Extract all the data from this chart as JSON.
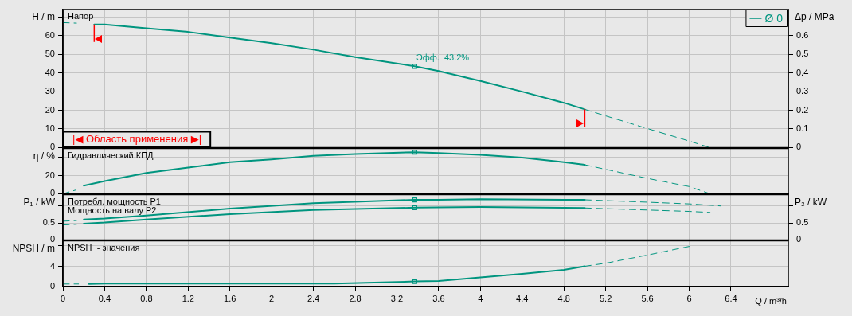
{
  "chart_data": [
    {
      "type": "line",
      "title": "Напор",
      "ylabel": "H / m",
      "y2label": "Δp / MPa",
      "xlim": [
        0,
        6.95
      ],
      "xticks": [
        0,
        0.4,
        0.8,
        1.2,
        1.6,
        2,
        2.4,
        2.8,
        3.2,
        3.6,
        4,
        4.4,
        4.8,
        5.2,
        5.6,
        6,
        6.4
      ],
      "ylim": [
        0,
        74
      ],
      "yticks": [
        0,
        10,
        20,
        30,
        40,
        50,
        60,
        {
          "value": 70,
          "label": null
        }
      ],
      "y2lim": [
        0,
        0.74
      ],
      "y2ticks": [
        0,
        0.1,
        0.2,
        0.3,
        0.4,
        0.5,
        0.6
      ],
      "grid": true,
      "legend": "top right",
      "tick_labels": "y",
      "annotations": [
        "|◀ Область применения ▶|",
        {
          "text": "Эфф.  43.2%",
          "x": 3.37,
          "y": 43.6
        }
      ],
      "ref_lines": [
        {
          "axis": "x",
          "value": 0.3,
          "color": "#ff0000"
        },
        {
          "axis": "x",
          "value": 5,
          "color": "#ff0000"
        }
      ],
      "series": [
        {
          "name": "Ø 0",
          "type": "line",
          "color": "#00957f",
          "line_style": "solid",
          "x": [
            0.3,
            0.4,
            0.8,
            1.2,
            1.6,
            2,
            2.4,
            2.8,
            3.37,
            3.6,
            4,
            4.4,
            4.8,
            5
          ],
          "values": [
            66,
            66,
            64,
            62,
            59,
            56,
            52.5,
            48.5,
            43.6,
            41,
            35.7,
            30,
            24,
            20.5
          ]
        },
        {
          "type": "line",
          "color": "#00957f",
          "line_style": "dashed",
          "x": [
            0,
            0.13
          ],
          "values": [
            67,
            66.7
          ]
        },
        {
          "type": "line",
          "color": "#00957f",
          "line_style": "dashed",
          "x": [
            5,
            5.2,
            5.6,
            6,
            6.2
          ],
          "values": [
            20.5,
            17,
            10.2,
            3.5,
            0
          ]
        },
        {
          "type": "scatter",
          "color": "#00957f",
          "marker": "square",
          "x": [
            3.37
          ],
          "values": [
            43.6
          ]
        }
      ]
    },
    {
      "type": "line",
      "title": "Гидравлический КПД",
      "ylabel": "η / %",
      "xlim": [
        0,
        6.95
      ],
      "xticks": [
        0,
        0.4,
        0.8,
        1.2,
        1.6,
        2,
        2.4,
        2.8,
        3.2,
        3.6,
        4,
        4.4,
        4.8,
        5.2,
        5.6,
        6,
        6.4
      ],
      "ylim": [
        0,
        50
      ],
      "yticks": [
        0,
        20,
        {
          "value": 40,
          "label": null
        }
      ],
      "grid": true,
      "tick_labels": "y",
      "series": [
        {
          "type": "line",
          "color": "#00957f",
          "line_style": "solid",
          "x": [
            0.2,
            0.4,
            0.8,
            1.2,
            1.6,
            2,
            2.4,
            2.8,
            3.37,
            3.6,
            4,
            4.4,
            4.8,
            5
          ],
          "values": [
            9,
            14,
            23,
            29,
            35,
            38,
            42,
            44,
            46,
            45,
            43,
            40,
            35,
            32
          ]
        },
        {
          "type": "line",
          "color": "#00957f",
          "line_style": "dashed",
          "x": [
            0,
            0.12
          ],
          "values": [
            0,
            4
          ]
        },
        {
          "type": "line",
          "color": "#00957f",
          "line_style": "dashed",
          "x": [
            5,
            5.2,
            5.6,
            6,
            6.2
          ],
          "values": [
            32,
            27,
            17,
            8,
            0
          ]
        },
        {
          "type": "scatter",
          "color": "#00957f",
          "marker": "square",
          "x": [
            3.37
          ],
          "values": [
            46
          ]
        }
      ]
    },
    {
      "type": "line",
      "title": "Потребл. мощность P1",
      "subtitle": "Мощность на валу P2",
      "ylabel": "P₁ / kW",
      "y2label": "P₂ / kW",
      "xlim": [
        0,
        6.95
      ],
      "xticks": [
        0,
        0.4,
        0.8,
        1.2,
        1.6,
        2,
        2.4,
        2.8,
        3.2,
        3.6,
        4,
        4.4,
        4.8,
        5.2,
        5.6,
        6,
        6.4
      ],
      "ylim": [
        0,
        1.33
      ],
      "yticks": [
        0,
        0.5,
        {
          "value": 1,
          "label": null
        }
      ],
      "y2lim": [
        0,
        1.33
      ],
      "y2ticks": [
        0,
        0.5,
        {
          "value": 1,
          "label": null
        }
      ],
      "grid": true,
      "tick_labels": "y",
      "series": [
        {
          "type": "line",
          "color": "#00957f",
          "line_style": "solid",
          "x": [
            0.2,
            0.4,
            0.8,
            1.6,
            2.4,
            3.37,
            3.6,
            4,
            4.8,
            5
          ],
          "values": [
            0.6,
            0.63,
            0.72,
            0.92,
            1.08,
            1.18,
            1.18,
            1.2,
            1.18,
            1.18
          ]
        },
        {
          "type": "line",
          "color": "#00957f",
          "line_style": "dashed",
          "x": [
            0,
            0.13
          ],
          "values": [
            0.55,
            0.57
          ]
        },
        {
          "type": "line",
          "color": "#00957f",
          "line_style": "dashed",
          "x": [
            5,
            5.6,
            6,
            6.3
          ],
          "values": [
            1.18,
            1.11,
            1.06,
            1
          ]
        },
        {
          "type": "line",
          "color": "#00957f",
          "line_style": "solid",
          "x": [
            0.2,
            0.4,
            0.8,
            1.6,
            2.4,
            3.37,
            4,
            5
          ],
          "values": [
            0.48,
            0.51,
            0.6,
            0.76,
            0.88,
            0.95,
            0.97,
            0.94
          ]
        },
        {
          "type": "line",
          "color": "#00957f",
          "line_style": "dashed",
          "x": [
            0,
            0.13
          ],
          "values": [
            0.44,
            0.46
          ]
        },
        {
          "type": "line",
          "color": "#00957f",
          "line_style": "dashed",
          "x": [
            5,
            5.6,
            6,
            6.2
          ],
          "values": [
            0.94,
            0.88,
            0.84,
            0.81
          ]
        },
        {
          "type": "scatter",
          "color": "#00957f",
          "marker": "square",
          "x": [
            3.37,
            3.37
          ],
          "values": [
            1.18,
            0.95
          ]
        }
      ]
    },
    {
      "type": "line",
      "title": "NPSH  - значения",
      "ylabel": "NPSH / m",
      "xlabel": "Q / m³/h",
      "xlim": [
        0,
        6.95
      ],
      "xticks": [
        0,
        0.4,
        0.8,
        1.2,
        1.6,
        2,
        2.4,
        2.8,
        3.2,
        3.6,
        4,
        4.4,
        4.8,
        5.2,
        5.6,
        6,
        6.4
      ],
      "ylim": [
        0,
        9
      ],
      "yticks": [
        0,
        4,
        {
          "value": 8,
          "label": null
        }
      ],
      "grid": true,
      "series": [
        {
          "type": "line",
          "color": "#00957f",
          "line_style": "solid",
          "x": [
            0.25,
            0.4,
            1.2,
            2,
            2.6,
            3.37,
            3.6,
            4,
            4.4,
            4.8,
            5
          ],
          "values": [
            0.5,
            0.6,
            0.6,
            0.6,
            0.6,
            1,
            1.1,
            1.8,
            2.5,
            3.3,
            4
          ]
        },
        {
          "type": "line",
          "color": "#00957f",
          "line_style": "dashed",
          "x": [
            0,
            0.15
          ],
          "values": [
            0.5,
            0.5
          ]
        },
        {
          "type": "line",
          "color": "#00957f",
          "line_style": "dashed",
          "x": [
            5,
            5.2,
            5.6,
            6
          ],
          "values": [
            4,
            4.6,
            6.2,
            7.9
          ]
        },
        {
          "type": "scatter",
          "color": "#00957f",
          "marker": "square",
          "x": [
            3.37
          ],
          "values": [
            1
          ]
        }
      ]
    }
  ]
}
